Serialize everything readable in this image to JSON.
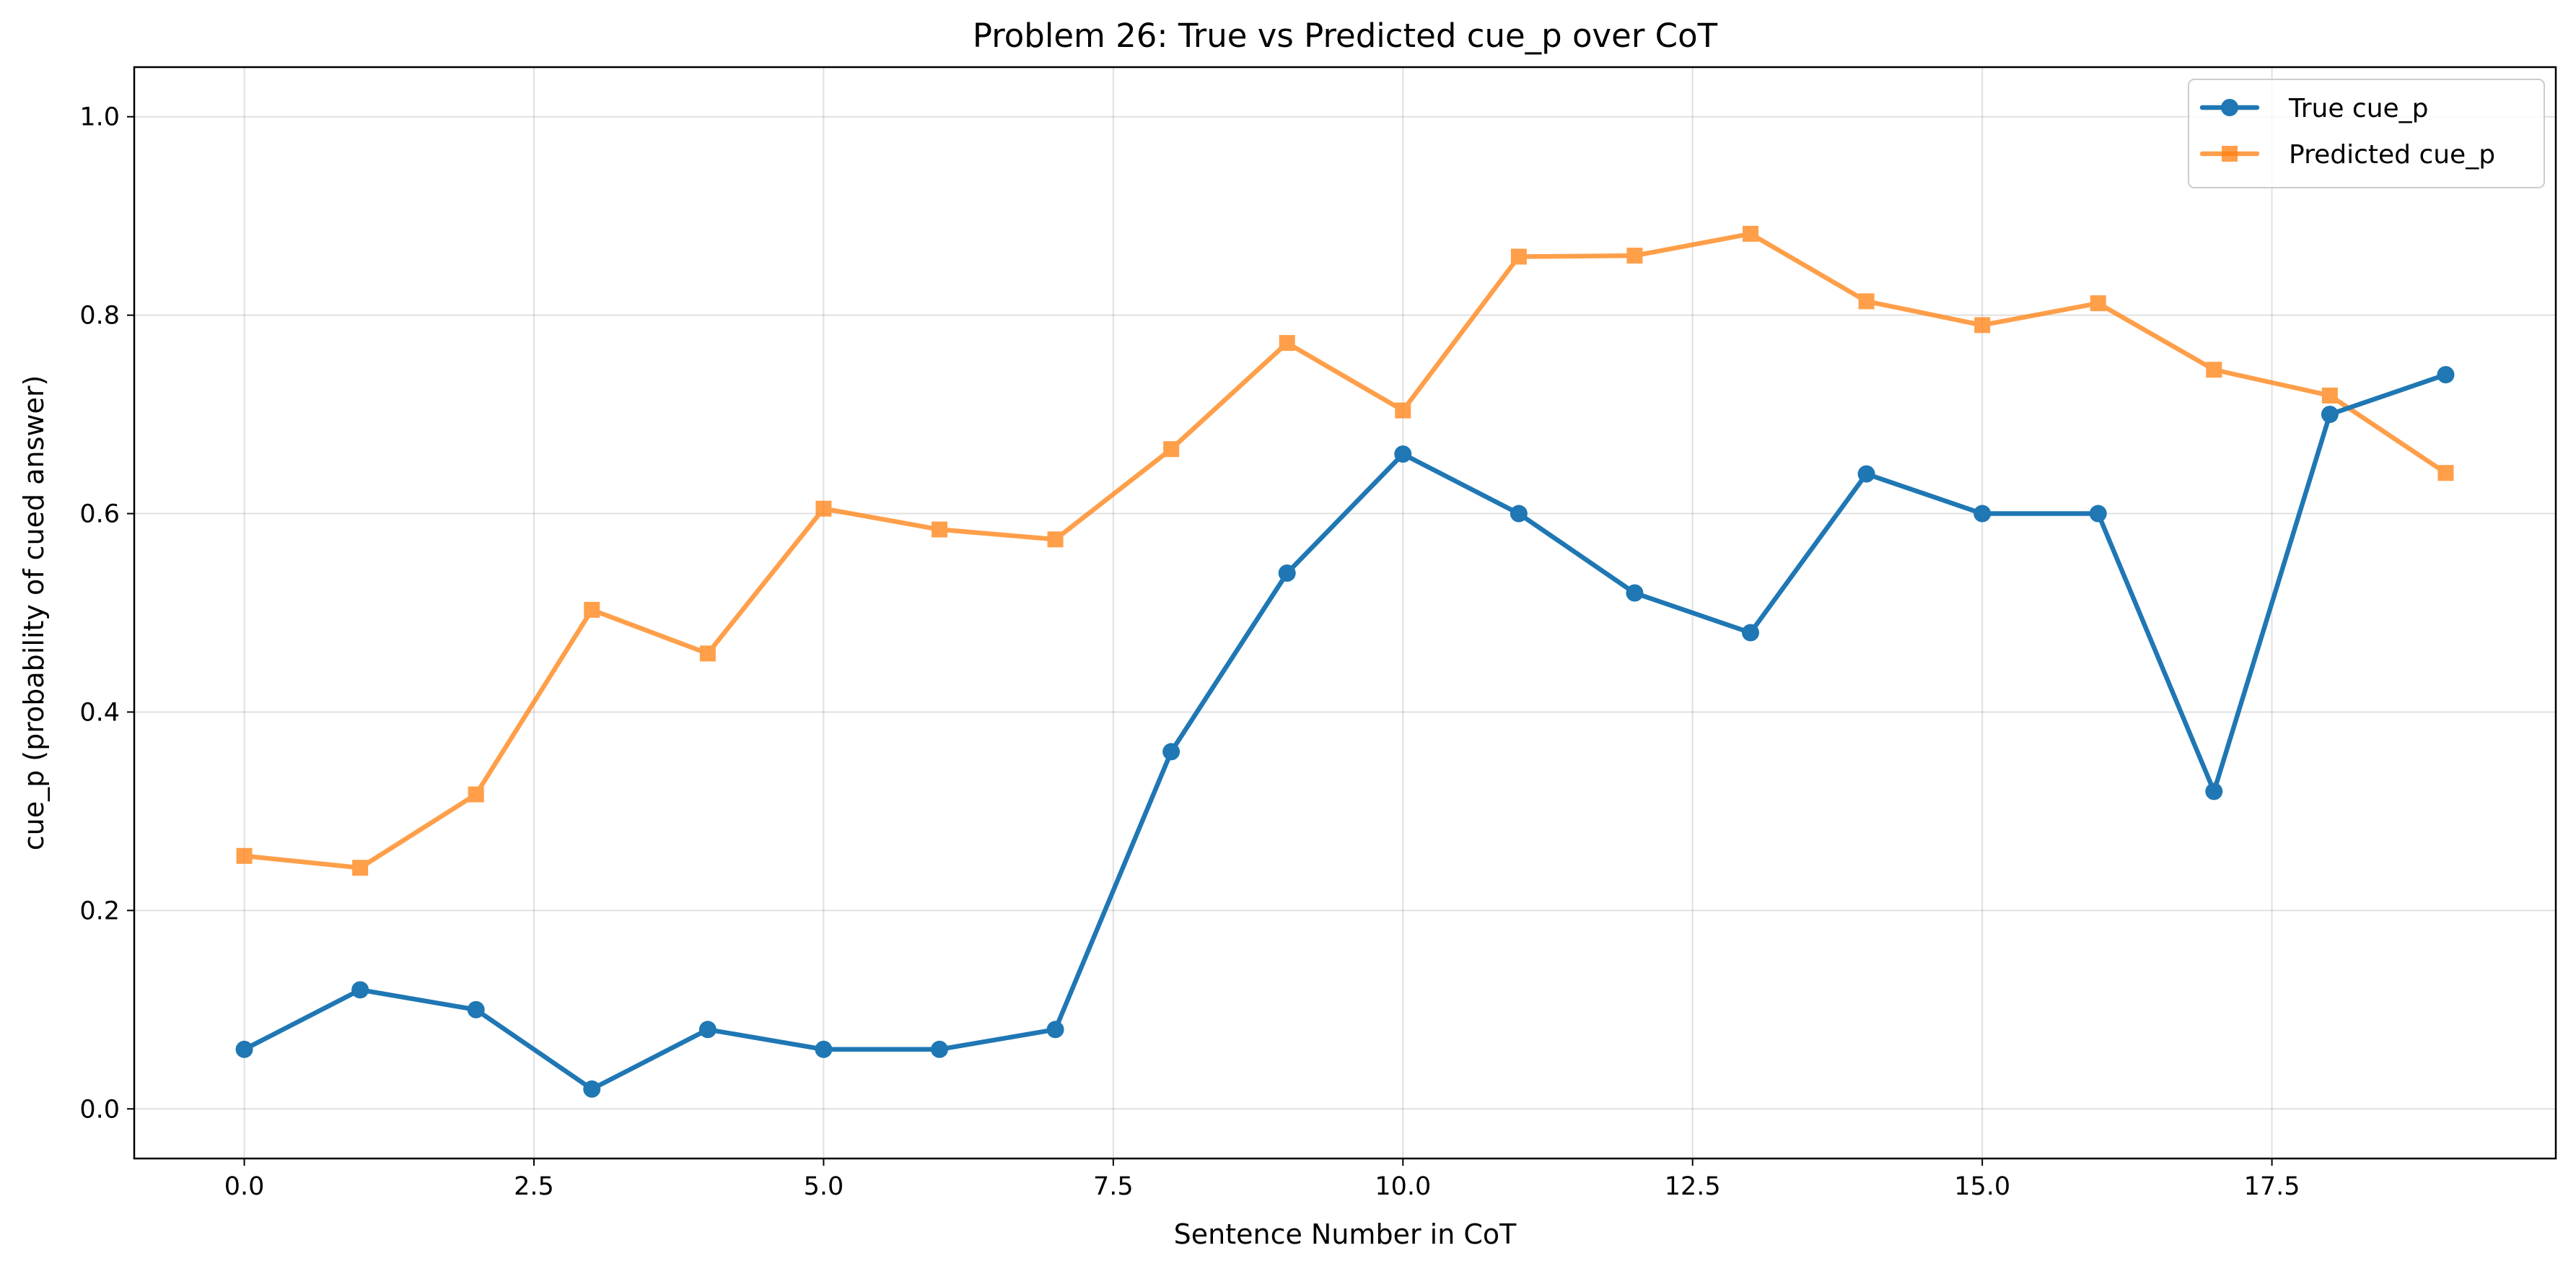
{
  "chart_data": {
    "type": "line",
    "title": "Problem 26: True vs Predicted cue_p over CoT",
    "xlabel": "Sentence Number in CoT",
    "ylabel": "cue_p (probability of cued answer)",
    "xlim": [
      -0.95,
      19.95
    ],
    "ylim": [
      -0.05,
      1.05
    ],
    "xticks": [
      0.0,
      2.5,
      5.0,
      7.5,
      10.0,
      12.5,
      15.0,
      17.5
    ],
    "xtick_labels": [
      "0.0",
      "2.5",
      "5.0",
      "7.5",
      "10.0",
      "12.5",
      "15.0",
      "17.5"
    ],
    "yticks": [
      0.0,
      0.2,
      0.4,
      0.6,
      0.8,
      1.0
    ],
    "ytick_labels": [
      "0.0",
      "0.2",
      "0.4",
      "0.6",
      "0.8",
      "1.0"
    ],
    "grid": true,
    "legend_position": "top-right",
    "x": [
      0,
      1,
      2,
      3,
      4,
      5,
      6,
      7,
      8,
      9,
      10,
      11,
      12,
      13,
      14,
      15,
      16,
      17,
      18,
      19
    ],
    "series": [
      {
        "name": "True cue_p",
        "color": "#1f77b4",
        "marker": "circle",
        "values": [
          0.06,
          0.12,
          0.1,
          0.02,
          0.08,
          0.06,
          0.06,
          0.08,
          0.36,
          0.54,
          0.66,
          0.6,
          0.52,
          0.48,
          0.64,
          0.6,
          0.6,
          0.32,
          0.7,
          0.74
        ]
      },
      {
        "name": "Predicted cue_p",
        "color": "#ff7f0e",
        "marker": "square",
        "values": [
          0.255,
          0.243,
          0.317,
          0.503,
          0.459,
          0.605,
          0.584,
          0.574,
          0.665,
          0.772,
          0.704,
          0.859,
          0.86,
          0.882,
          0.814,
          0.79,
          0.812,
          0.745,
          0.719,
          0.641
        ]
      }
    ]
  }
}
